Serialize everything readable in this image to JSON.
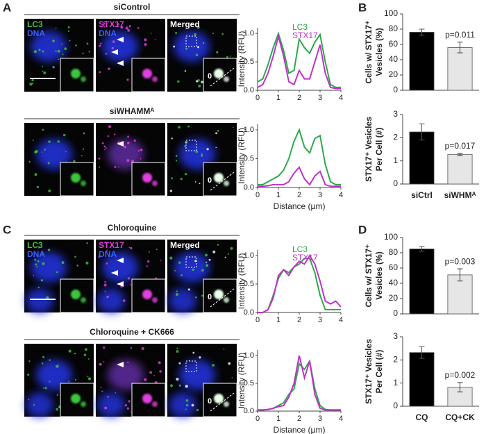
{
  "figure": {
    "panel_labels": [
      "A",
      "B",
      "C",
      "D"
    ],
    "rows": [
      {
        "title": "siControl",
        "channel_labels": [
          [
            "LC3",
            "DNA"
          ],
          [
            "STX17",
            "DNA"
          ],
          [
            "Merged"
          ]
        ],
        "inset_label": "0"
      },
      {
        "title": "siWHAMMᴬ",
        "inset_label": "0"
      },
      {
        "title": "Chloroquine",
        "channel_labels": [
          [
            "LC3",
            "DNA"
          ],
          [
            "STX17",
            "DNA"
          ],
          [
            "Merged"
          ]
        ],
        "inset_label": "0"
      },
      {
        "title": "Chloroquine + CK666",
        "inset_label": "0"
      }
    ]
  },
  "chart_data": [
    {
      "type": "line",
      "ylabel": "Intensity (RFU)",
      "legend": "top",
      "x": [
        0,
        0.25,
        0.5,
        0.75,
        1,
        1.25,
        1.5,
        1.75,
        2,
        2.25,
        2.5,
        2.75,
        3,
        3.25,
        3.5,
        3.75,
        4
      ],
      "xlim": [
        0,
        4
      ],
      "xticks": [
        0,
        1,
        2,
        3,
        4
      ],
      "ylim": [
        0,
        1.1
      ],
      "yticks": [
        {
          "value": 0,
          "label": "0.0"
        },
        {
          "value": 0.5,
          "label": "0.5"
        },
        {
          "value": 1,
          "label": "1.0"
        }
      ],
      "series": [
        {
          "name": "LC3",
          "color": "#2ca84a",
          "values": [
            0.15,
            0.2,
            0.45,
            0.75,
            1.0,
            0.7,
            0.3,
            0.35,
            0.9,
            0.75,
            0.65,
            0.85,
            0.98,
            0.5,
            0.1,
            0.05,
            0.05
          ]
        },
        {
          "name": "STX17",
          "color": "#c030c8",
          "values": [
            0.05,
            0.1,
            0.3,
            0.6,
            0.95,
            0.6,
            0.15,
            0.1,
            0.35,
            0.2,
            0.2,
            0.5,
            0.8,
            0.3,
            0.05,
            0.03,
            0.03
          ]
        }
      ]
    },
    {
      "type": "line",
      "ylabel": "Intensity (RFU)",
      "xlabel": "Distance (µm)",
      "x": [
        0,
        0.25,
        0.5,
        0.75,
        1,
        1.25,
        1.5,
        1.75,
        2,
        2.25,
        2.5,
        2.75,
        3,
        3.25,
        3.5,
        3.75,
        4
      ],
      "xlim": [
        0,
        4
      ],
      "xticks": [
        0,
        1,
        2,
        3,
        4
      ],
      "ylim": [
        0,
        1.1
      ],
      "yticks": [
        {
          "value": 0,
          "label": "0.0"
        },
        {
          "value": 0.5,
          "label": "0.5"
        },
        {
          "value": 1,
          "label": "1.0"
        }
      ],
      "series": [
        {
          "color": "#2ca84a",
          "values": [
            0.05,
            0.05,
            0.1,
            0.15,
            0.2,
            0.3,
            0.5,
            0.8,
            1.0,
            0.7,
            0.6,
            0.85,
            0.9,
            0.4,
            0.1,
            0.05,
            0.05
          ]
        },
        {
          "color": "#c030c8",
          "values": [
            0.02,
            0.02,
            0.03,
            0.05,
            0.05,
            0.05,
            0.1,
            0.25,
            0.35,
            0.15,
            0.05,
            0.2,
            0.28,
            0.05,
            0.02,
            0.02,
            0.02
          ]
        }
      ]
    },
    {
      "type": "line",
      "ylabel": "Intensity (RFU)",
      "legend": "top",
      "x": [
        0,
        0.25,
        0.5,
        0.75,
        1,
        1.25,
        1.5,
        1.75,
        2,
        2.25,
        2.5,
        2.75,
        3,
        3.25,
        3.5,
        3.75,
        4
      ],
      "xlim": [
        0,
        4
      ],
      "xticks": [
        0,
        1,
        2,
        3,
        4
      ],
      "ylim": [
        0,
        1.1
      ],
      "yticks": [
        {
          "value": 0,
          "label": "0.0"
        },
        {
          "value": 0.5,
          "label": "0.5"
        },
        {
          "value": 1,
          "label": "1.0"
        }
      ],
      "series": [
        {
          "name": "LC3",
          "color": "#2ca84a",
          "values": [
            0,
            0,
            0.05,
            0.3,
            0.6,
            0.75,
            0.7,
            0.8,
            0.85,
            0.95,
            0.95,
            0.7,
            0.3,
            0.05,
            0.05,
            0.05,
            0.05
          ]
        },
        {
          "name": "STX17",
          "color": "#c030c8",
          "values": [
            0,
            0,
            0.05,
            0.25,
            0.65,
            0.75,
            0.65,
            0.8,
            0.9,
            0.85,
            1.0,
            0.85,
            0.55,
            0.2,
            0.15,
            0.2,
            0.1
          ]
        }
      ]
    },
    {
      "type": "line",
      "ylabel": "Intensity (RFU)",
      "xlabel": "Distance (µm)",
      "x": [
        0,
        0.25,
        0.5,
        0.75,
        1,
        1.25,
        1.5,
        1.75,
        2,
        2.25,
        2.5,
        2.75,
        3,
        3.25,
        3.5,
        3.75,
        4
      ],
      "xlim": [
        0,
        4
      ],
      "xticks": [
        0,
        1,
        2,
        3,
        4
      ],
      "ylim": [
        0,
        1.1
      ],
      "yticks": [
        {
          "value": 0,
          "label": "0.0"
        },
        {
          "value": 0.5,
          "label": "0.5"
        },
        {
          "value": 1,
          "label": "1.0"
        }
      ],
      "series": [
        {
          "color": "#2ca84a",
          "values": [
            0.02,
            0.02,
            0.03,
            0.05,
            0.1,
            0.15,
            0.3,
            0.4,
            0.85,
            0.75,
            0.9,
            0.4,
            0.1,
            0.03,
            0.02,
            0.02,
            0.02
          ]
        },
        {
          "color": "#c030c8",
          "values": [
            0.02,
            0.02,
            0.03,
            0.05,
            0.08,
            0.1,
            0.25,
            0.5,
            1.0,
            0.6,
            0.9,
            0.3,
            0.05,
            0.02,
            0.02,
            0.02,
            0.02
          ]
        }
      ]
    },
    {
      "type": "bar",
      "ylabel": [
        "Cells w/ STX17⁺",
        "Vesicles (%)"
      ],
      "categories": [
        null,
        null
      ],
      "values": [
        76,
        56
      ],
      "errors": [
        4,
        7
      ],
      "colors": [
        "#000000",
        "#e6e6e6"
      ],
      "ylim": [
        0,
        100
      ],
      "yticks": [
        0,
        20,
        40,
        60,
        80,
        100
      ],
      "annotation": "p=0.011"
    },
    {
      "type": "bar",
      "ylabel": [
        "STX17⁺ Vesicles",
        "Per Cell (#)"
      ],
      "categories": [
        "siCtrl",
        "siWHMᴬ"
      ],
      "values": [
        2.25,
        1.28
      ],
      "errors": [
        0.35,
        0.05
      ],
      "colors": [
        "#000000",
        "#e6e6e6"
      ],
      "ylim": [
        0,
        3
      ],
      "yticks": [
        0,
        1,
        2,
        3
      ],
      "annotation": "p=0.017"
    },
    {
      "type": "bar",
      "ylabel": [
        "Cells w/ STX17⁺",
        "Vesicles (%)"
      ],
      "categories": [
        null,
        null
      ],
      "values": [
        85,
        51
      ],
      "errors": [
        3,
        8
      ],
      "colors": [
        "#000000",
        "#e6e6e6"
      ],
      "ylim": [
        0,
        100
      ],
      "yticks": [
        0,
        20,
        40,
        60,
        80,
        100
      ],
      "annotation": "p=0.003"
    },
    {
      "type": "bar",
      "ylabel": [
        "STX17⁺ Vesicles",
        "Per Cell (#)"
      ],
      "categories": [
        "CQ",
        "CQ+CK"
      ],
      "values": [
        2.32,
        0.82
      ],
      "errors": [
        0.25,
        0.2
      ],
      "colors": [
        "#000000",
        "#e6e6e6"
      ],
      "ylim": [
        0,
        3
      ],
      "yticks": [
        0,
        1,
        2,
        3
      ],
      "annotation": "p=0.002"
    }
  ]
}
